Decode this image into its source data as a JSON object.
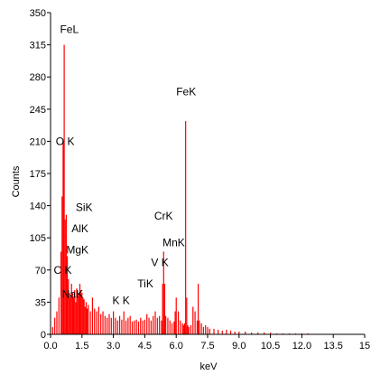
{
  "chart_data": {
    "type": "bar",
    "title": "",
    "xlabel": "keV",
    "ylabel": "Counts",
    "xlim": [
      0,
      15
    ],
    "ylim": [
      0,
      350
    ],
    "grid": false,
    "x_ticks": [
      "0.0",
      "1.5",
      "3.0",
      "4.5",
      "6.0",
      "7.5",
      "9.0",
      "10.5",
      "12.0",
      "13.5",
      "15"
    ],
    "y_ticks": [
      "0",
      "35",
      "70",
      "105",
      "140",
      "175",
      "210",
      "245",
      "280",
      "315",
      "350"
    ],
    "series": [
      {
        "color": "#ff0000",
        "x": [
          0.1,
          0.2,
          0.3,
          0.4,
          0.5,
          0.55,
          0.6,
          0.65,
          0.7,
          0.75,
          0.8,
          0.85,
          0.9,
          0.95,
          1.0,
          1.05,
          1.1,
          1.15,
          1.2,
          1.25,
          1.3,
          1.35,
          1.4,
          1.45,
          1.5,
          1.55,
          1.6,
          1.65,
          1.7,
          1.75,
          1.8,
          1.9,
          2.0,
          2.1,
          2.2,
          2.3,
          2.4,
          2.5,
          2.6,
          2.7,
          2.8,
          2.9,
          3.0,
          3.1,
          3.2,
          3.3,
          3.4,
          3.5,
          3.6,
          3.7,
          3.8,
          3.9,
          4.0,
          4.1,
          4.2,
          4.3,
          4.4,
          4.5,
          4.6,
          4.7,
          4.8,
          4.9,
          5.0,
          5.1,
          5.2,
          5.3,
          5.35,
          5.4,
          5.45,
          5.5,
          5.6,
          5.7,
          5.8,
          5.9,
          5.95,
          6.0,
          6.1,
          6.2,
          6.3,
          6.35,
          6.4,
          6.45,
          6.5,
          6.55,
          6.6,
          6.7,
          6.8,
          6.9,
          7.0,
          7.05,
          7.1,
          7.2,
          7.3,
          7.4,
          7.5,
          7.6,
          7.8,
          8.0,
          8.2,
          8.4,
          8.6,
          8.8,
          9.0,
          9.3,
          9.6,
          9.9,
          10.2,
          10.5,
          10.8,
          11.1,
          11.4,
          11.7,
          12.0,
          12.3
        ],
        "values": [
          8,
          18,
          25,
          40,
          90,
          150,
          210,
          315,
          125,
          130,
          85,
          60,
          45,
          40,
          55,
          45,
          40,
          48,
          35,
          50,
          42,
          45,
          55,
          48,
          45,
          40,
          38,
          30,
          35,
          28,
          32,
          25,
          40,
          28,
          25,
          30,
          22,
          25,
          20,
          18,
          22,
          18,
          25,
          18,
          15,
          20,
          16,
          25,
          15,
          18,
          20,
          14,
          15,
          16,
          14,
          18,
          15,
          16,
          22,
          18,
          15,
          20,
          25,
          18,
          20,
          15,
          55,
          90,
          55,
          20,
          18,
          15,
          12,
          14,
          25,
          40,
          25,
          15,
          12,
          10,
          12,
          232,
          40,
          10,
          8,
          10,
          30,
          25,
          15,
          55,
          15,
          12,
          8,
          10,
          8,
          6,
          6,
          5,
          4,
          5,
          4,
          3,
          3,
          3,
          2,
          2,
          2,
          2,
          1,
          1,
          1,
          1,
          1,
          1
        ]
      }
    ],
    "annotations": [
      {
        "text": "FeL",
        "x": 0.45,
        "y": 328
      },
      {
        "text": "O K",
        "x": 0.25,
        "y": 206
      },
      {
        "text": "FeK",
        "x": 6.0,
        "y": 260
      },
      {
        "text": "SiK",
        "x": 1.2,
        "y": 134
      },
      {
        "text": "AlK",
        "x": 1.0,
        "y": 111
      },
      {
        "text": "CrK",
        "x": 4.95,
        "y": 125
      },
      {
        "text": "MgK",
        "x": 0.75,
        "y": 88
      },
      {
        "text": "MnK",
        "x": 5.35,
        "y": 96
      },
      {
        "text": "V K",
        "x": 4.8,
        "y": 74
      },
      {
        "text": "C K",
        "x": 0.15,
        "y": 66
      },
      {
        "text": "TiK",
        "x": 4.15,
        "y": 51
      },
      {
        "text": "K K",
        "x": 2.95,
        "y": 33
      },
      {
        "text": "NaK",
        "x": 0.55,
        "y": 40
      }
    ]
  }
}
